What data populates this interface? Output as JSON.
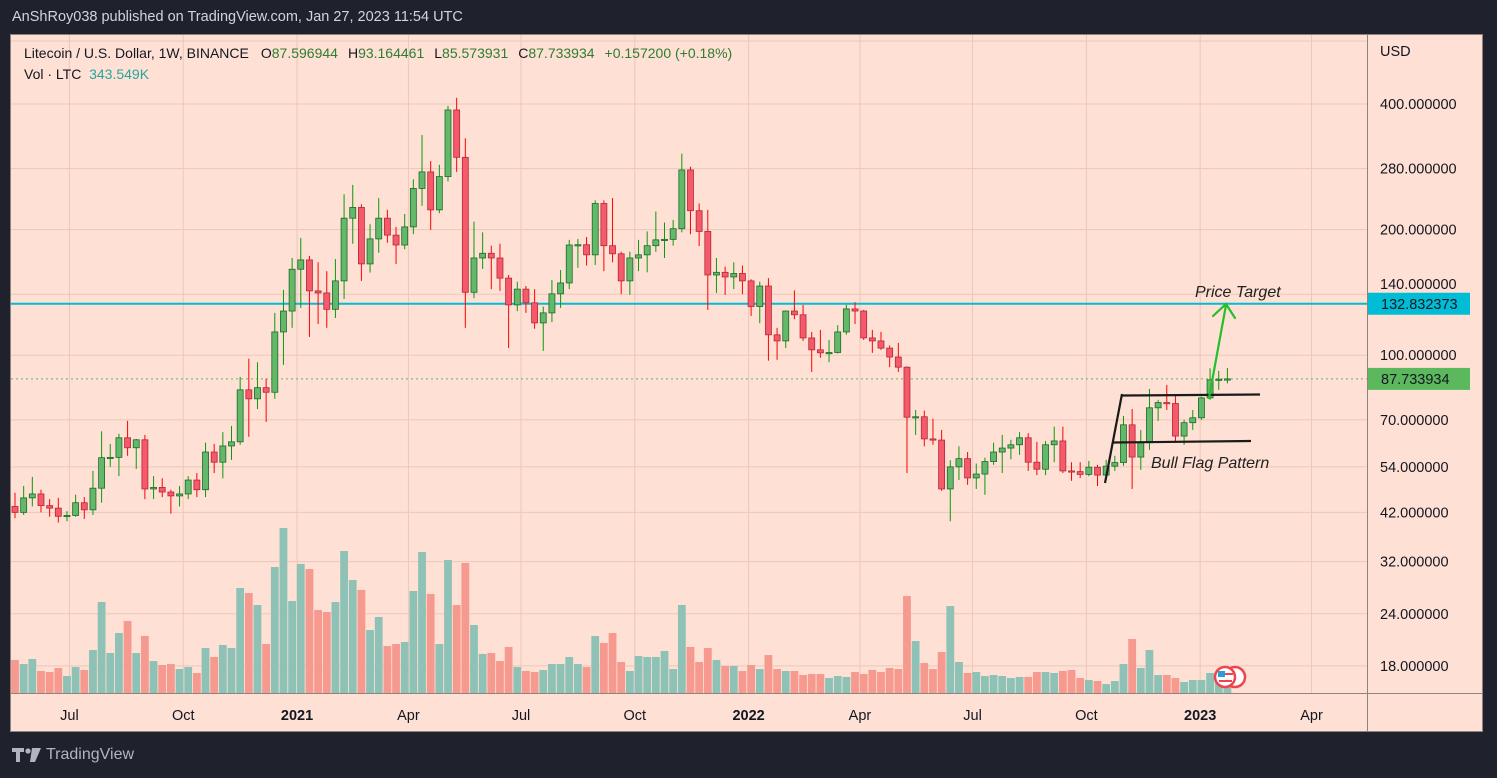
{
  "header": {
    "published": "AnShRoy038 published on TradingView.com, Jan 27, 2023 11:54 UTC"
  },
  "legend": {
    "symbol": "Litecoin / U.S. Dollar, 1W, BINANCE",
    "open_label": "O",
    "open": "87.596944",
    "high_label": "H",
    "high": "93.164461",
    "low_label": "L",
    "low": "85.573931",
    "close_label": "C",
    "close": "87.733934",
    "change": "+0.157200 (+0.18%)",
    "volume_label": "Vol · LTC",
    "volume": "343.549K"
  },
  "branding": {
    "logo_text": "TradingView"
  },
  "colors": {
    "background": "#fee0d4",
    "up": "#63b86a",
    "down": "#f45a6a",
    "vol_up": "#8fc2b6",
    "vol_down": "#f69a90",
    "target_line": "#00bcd4",
    "last_price": "#5cb85c",
    "arrow": "#22c02a"
  },
  "chart_data": {
    "type": "candlestick",
    "title": "",
    "currency_label": "USD",
    "y_scale": "log",
    "grid": true,
    "ylim": [
      16,
      470
    ],
    "y_ticks": [
      "400.000000",
      "280.000000",
      "200.000000",
      "140.000000",
      "100.000000",
      "70.000000",
      "54.000000",
      "42.000000",
      "32.000000",
      "24.000000",
      "18.000000"
    ],
    "x_ticks": [
      {
        "label": "Jul",
        "date": "2020-07-01",
        "year": false
      },
      {
        "label": "Oct",
        "date": "2020-10-01",
        "year": false
      },
      {
        "label": "2021",
        "date": "2021-01-01",
        "year": true
      },
      {
        "label": "Apr",
        "date": "2021-04-01",
        "year": false
      },
      {
        "label": "Jul",
        "date": "2021-07-01",
        "year": false
      },
      {
        "label": "Oct",
        "date": "2021-10-01",
        "year": false
      },
      {
        "label": "2022",
        "date": "2022-01-01",
        "year": true
      },
      {
        "label": "Apr",
        "date": "2022-04-01",
        "year": false
      },
      {
        "label": "Jul",
        "date": "2022-07-01",
        "year": false
      },
      {
        "label": "Oct",
        "date": "2022-10-01",
        "year": false
      },
      {
        "label": "2023",
        "date": "2023-01-01",
        "year": true
      },
      {
        "label": "Apr",
        "date": "2023-04-01",
        "year": false
      }
    ],
    "price_target": {
      "value": 132.832373,
      "label": "132.832373",
      "text": "Price Target"
    },
    "last_price": {
      "value": 87.733934,
      "label": "87.733934"
    },
    "pattern_label": "Bull Flag Pattern",
    "columns": [
      "date",
      "open",
      "high",
      "low",
      "close",
      "volume_k"
    ],
    "candles": [
      [
        "2020-05-18",
        43.4,
        46.8,
        40.7,
        42.0,
        540
      ],
      [
        "2020-05-25",
        42.0,
        48.6,
        41.4,
        45.5,
        474
      ],
      [
        "2020-06-01",
        45.5,
        51.1,
        43.4,
        46.5,
        556
      ],
      [
        "2020-06-08",
        46.5,
        47.6,
        42.0,
        43.6,
        360
      ],
      [
        "2020-06-15",
        43.6,
        45.2,
        41.0,
        43.0,
        343
      ],
      [
        "2020-06-22",
        43.0,
        45.5,
        39.7,
        41.1,
        409
      ],
      [
        "2020-06-29",
        41.1,
        42.3,
        40.0,
        41.3,
        278
      ],
      [
        "2020-07-06",
        41.3,
        46.3,
        41.0,
        44.3,
        425
      ],
      [
        "2020-07-13",
        44.3,
        45.7,
        40.5,
        42.6,
        376
      ],
      [
        "2020-07-20",
        42.6,
        52.8,
        41.4,
        48.0,
        703
      ],
      [
        "2020-07-27",
        48.0,
        65.7,
        44.3,
        56.8,
        1488
      ],
      [
        "2020-08-03",
        56.8,
        61.3,
        54.0,
        56.9,
        654
      ],
      [
        "2020-08-10",
        56.9,
        64.8,
        51.3,
        63.4,
        981
      ],
      [
        "2020-08-17",
        63.4,
        69.6,
        57.4,
        60.0,
        1177
      ],
      [
        "2020-08-24",
        60.0,
        63.0,
        53.4,
        62.7,
        654
      ],
      [
        "2020-08-31",
        62.7,
        64.4,
        45.2,
        47.8,
        932
      ],
      [
        "2020-09-07",
        47.8,
        51.3,
        45.2,
        48.2,
        523
      ],
      [
        "2020-09-14",
        48.2,
        50.7,
        45.7,
        47.0,
        458
      ],
      [
        "2020-09-21",
        47.0,
        47.6,
        41.7,
        46.0,
        474
      ],
      [
        "2020-09-28",
        46.0,
        48.6,
        43.4,
        46.5,
        392
      ],
      [
        "2020-10-05",
        46.5,
        51.3,
        45.2,
        50.2,
        425
      ],
      [
        "2020-10-12",
        50.2,
        52.2,
        45.7,
        47.6,
        327
      ],
      [
        "2020-10-19",
        47.6,
        61.7,
        45.7,
        58.6,
        736
      ],
      [
        "2020-10-26",
        58.6,
        61.3,
        52.2,
        55.4,
        589
      ],
      [
        "2020-11-02",
        55.4,
        65.4,
        50.7,
        60.6,
        785
      ],
      [
        "2020-11-09",
        60.6,
        67.7,
        56.1,
        62.0,
        736
      ],
      [
        "2020-11-16",
        62.0,
        88.7,
        61.0,
        82.6,
        1717
      ],
      [
        "2020-11-23",
        82.6,
        98.1,
        63.7,
        78.6,
        1635
      ],
      [
        "2020-11-30",
        78.6,
        96.2,
        74.3,
        83.6,
        1439
      ],
      [
        "2020-12-07",
        83.6,
        87.8,
        69.2,
        81.5,
        801
      ],
      [
        "2020-12-14",
        81.5,
        126.3,
        78.6,
        113.7,
        2060
      ],
      [
        "2020-12-21",
        113.7,
        143.4,
        94.8,
        127.6,
        2698
      ],
      [
        "2020-12-28",
        127.6,
        171.0,
        116.3,
        160.7,
        1504
      ],
      [
        "2021-01-04",
        160.7,
        191.0,
        129.8,
        169.2,
        2109
      ],
      [
        "2021-01-11",
        169.2,
        173.0,
        110.6,
        142.6,
        2027
      ],
      [
        "2021-01-18",
        142.6,
        167.0,
        118.8,
        141.0,
        1357
      ],
      [
        "2021-01-25",
        141.0,
        159.0,
        116.3,
        128.8,
        1324
      ],
      [
        "2021-02-01",
        128.8,
        170.0,
        122.8,
        150.7,
        1488
      ],
      [
        "2021-02-08",
        150.7,
        243.0,
        136.4,
        213.0,
        2322
      ],
      [
        "2021-02-15",
        213.0,
        256.0,
        185.0,
        226.0,
        1848
      ],
      [
        "2021-02-22",
        226.0,
        230.0,
        150.7,
        165.5,
        1684
      ],
      [
        "2021-03-01",
        165.5,
        206.0,
        157.8,
        190.0,
        1030
      ],
      [
        "2021-03-08",
        190.0,
        238.0,
        176.0,
        213.0,
        1243
      ],
      [
        "2021-03-15",
        213.0,
        223.0,
        186.0,
        194.0,
        768
      ],
      [
        "2021-03-22",
        194.0,
        203.0,
        165.5,
        183.7,
        801
      ],
      [
        "2021-03-29",
        183.7,
        218.0,
        179.5,
        203.0,
        834
      ],
      [
        "2021-04-05",
        203.0,
        264.0,
        195.0,
        251.0,
        1668
      ],
      [
        "2021-04-12",
        251.0,
        337.0,
        228.0,
        275.0,
        2305
      ],
      [
        "2021-04-19",
        275.0,
        292.0,
        199.6,
        223.0,
        1619
      ],
      [
        "2021-04-26",
        223.0,
        286.0,
        219.0,
        268.0,
        801
      ],
      [
        "2021-05-03",
        268.0,
        396.0,
        261.0,
        387.0,
        2175
      ],
      [
        "2021-05-10",
        387.0,
        414.0,
        275.0,
        298.0,
        1439
      ],
      [
        "2021-05-17",
        298.0,
        331.0,
        116.3,
        141.5,
        2126
      ],
      [
        "2021-05-24",
        141.5,
        209.0,
        137.0,
        171.0,
        1112
      ],
      [
        "2021-05-31",
        171.0,
        197.0,
        161.0,
        175.5,
        638
      ],
      [
        "2021-06-07",
        175.5,
        183.0,
        144.0,
        171.0,
        654
      ],
      [
        "2021-06-14",
        171.0,
        185.0,
        142.6,
        153.0,
        523
      ],
      [
        "2021-06-21",
        153.0,
        155.7,
        104.0,
        132.0,
        752
      ],
      [
        "2021-06-28",
        132.0,
        150.0,
        127.5,
        144.0,
        425
      ],
      [
        "2021-07-05",
        144.0,
        146.5,
        126.3,
        133.5,
        360
      ],
      [
        "2021-07-12",
        133.5,
        144.0,
        115.7,
        119.5,
        343
      ],
      [
        "2021-07-19",
        119.5,
        130.8,
        102.4,
        126.3,
        376
      ],
      [
        "2021-07-26",
        126.3,
        151.5,
        120.0,
        140.3,
        474
      ],
      [
        "2021-08-02",
        140.3,
        160.0,
        129.8,
        149.0,
        474
      ],
      [
        "2021-08-09",
        149.0,
        189.0,
        144.0,
        183.7,
        589
      ],
      [
        "2021-08-16",
        183.7,
        190.0,
        162.0,
        184.0,
        474
      ],
      [
        "2021-08-23",
        184.0,
        192.0,
        164.0,
        174.0,
        425
      ],
      [
        "2021-08-30",
        174.0,
        235.0,
        164.6,
        231.0,
        932
      ],
      [
        "2021-09-06",
        231.0,
        235.0,
        159.0,
        183.0,
        818
      ],
      [
        "2021-09-13",
        183.0,
        238.0,
        167.0,
        175.0,
        981
      ],
      [
        "2021-09-20",
        175.0,
        177.0,
        140.0,
        150.7,
        507
      ],
      [
        "2021-09-27",
        150.7,
        177.0,
        139.5,
        171.0,
        360
      ],
      [
        "2021-10-04",
        171.0,
        189.0,
        159.0,
        174.0,
        605
      ],
      [
        "2021-10-11",
        174.0,
        198.0,
        158.0,
        183.0,
        589
      ],
      [
        "2021-10-18",
        183.0,
        221.0,
        177.0,
        189.0,
        589
      ],
      [
        "2021-10-25",
        189.0,
        208.0,
        171.0,
        189.5,
        687
      ],
      [
        "2021-11-01",
        189.5,
        211.0,
        183.0,
        201.0,
        392
      ],
      [
        "2021-11-08",
        201.0,
        304.0,
        197.0,
        278.0,
        1439
      ],
      [
        "2021-11-15",
        278.0,
        283.0,
        195.0,
        222.0,
        752
      ],
      [
        "2021-11-22",
        222.0,
        231.0,
        182.7,
        198.0,
        507
      ],
      [
        "2021-11-29",
        198.0,
        223.0,
        128.4,
        155.7,
        736
      ],
      [
        "2021-12-06",
        155.7,
        171.0,
        141.0,
        158.0,
        540
      ],
      [
        "2021-12-13",
        158.0,
        163.0,
        139.5,
        154.0,
        441
      ],
      [
        "2021-12-20",
        154.0,
        167.0,
        144.0,
        157.0,
        441
      ],
      [
        "2021-12-27",
        157.0,
        164.0,
        140.0,
        150.7,
        360
      ],
      [
        "2022-01-03",
        150.7,
        152.0,
        124.2,
        130.8,
        458
      ],
      [
        "2022-01-10",
        130.8,
        150.0,
        119.3,
        146.5,
        392
      ],
      [
        "2022-01-17",
        146.5,
        153.0,
        97.0,
        111.9,
        621
      ],
      [
        "2022-01-24",
        111.9,
        116.3,
        97.5,
        108.2,
        392
      ],
      [
        "2022-01-31",
        108.2,
        128.0,
        104.0,
        127.6,
        360
      ],
      [
        "2022-02-07",
        127.6,
        143.0,
        122.0,
        125.0,
        360
      ],
      [
        "2022-02-14",
        125.0,
        132.0,
        108.2,
        110.0,
        294
      ],
      [
        "2022-02-21",
        110.0,
        113.7,
        91.2,
        103.0,
        311
      ],
      [
        "2022-02-28",
        103.0,
        115.0,
        98.6,
        101.3,
        311
      ],
      [
        "2022-03-07",
        101.3,
        108.8,
        96.2,
        101.5,
        245
      ],
      [
        "2022-03-14",
        101.5,
        118.0,
        101.0,
        113.7,
        278
      ],
      [
        "2022-03-21",
        113.7,
        132.0,
        112.0,
        129.1,
        262
      ],
      [
        "2022-03-28",
        129.1,
        134.0,
        118.8,
        127.6,
        343
      ],
      [
        "2022-04-04",
        127.6,
        128.4,
        108.8,
        110.0,
        311
      ],
      [
        "2022-04-11",
        110.0,
        115.0,
        101.3,
        108.2,
        376
      ],
      [
        "2022-04-18",
        108.2,
        113.7,
        103.0,
        104.0,
        343
      ],
      [
        "2022-04-25",
        104.0,
        105.5,
        93.6,
        99.0,
        409
      ],
      [
        "2022-05-02",
        99.0,
        107.0,
        91.2,
        93.6,
        392
      ],
      [
        "2022-05-09",
        93.6,
        94.0,
        52.2,
        71.0,
        1586
      ],
      [
        "2022-05-16",
        71.0,
        73.9,
        64.4,
        71.2,
        850
      ],
      [
        "2022-05-23",
        71.2,
        73.6,
        60.5,
        63.0,
        491
      ],
      [
        "2022-05-30",
        63.0,
        70.4,
        61.0,
        62.6,
        392
      ],
      [
        "2022-06-06",
        62.6,
        66.2,
        47.3,
        47.8,
        670
      ],
      [
        "2022-06-13",
        47.8,
        56.0,
        40.0,
        54.0,
        1422
      ],
      [
        "2022-06-20",
        54.0,
        60.5,
        50.2,
        56.5,
        507
      ],
      [
        "2022-06-27",
        56.5,
        58.6,
        48.9,
        50.8,
        327
      ],
      [
        "2022-07-04",
        50.8,
        55.0,
        47.8,
        51.9,
        343
      ],
      [
        "2022-07-11",
        51.9,
        56.8,
        46.3,
        55.6,
        278
      ],
      [
        "2022-07-18",
        55.6,
        61.7,
        54.6,
        58.6,
        294
      ],
      [
        "2022-07-25",
        58.6,
        64.4,
        52.2,
        59.9,
        278
      ],
      [
        "2022-08-01",
        59.9,
        62.7,
        56.3,
        61.0,
        245
      ],
      [
        "2022-08-08",
        61.0,
        65.4,
        57.7,
        63.4,
        262
      ],
      [
        "2022-08-15",
        63.4,
        65.0,
        52.8,
        55.4,
        262
      ],
      [
        "2022-08-22",
        55.4,
        62.0,
        51.6,
        53.3,
        343
      ],
      [
        "2022-08-29",
        53.3,
        62.3,
        51.6,
        61.0,
        343
      ],
      [
        "2022-09-05",
        61.0,
        67.4,
        55.4,
        62.3,
        327
      ],
      [
        "2022-09-12",
        62.3,
        67.4,
        52.2,
        52.8,
        360
      ],
      [
        "2022-09-19",
        52.8,
        55.4,
        50.0,
        52.6,
        376
      ],
      [
        "2022-09-26",
        52.6,
        55.4,
        50.8,
        51.8,
        245
      ],
      [
        "2022-10-03",
        51.8,
        55.8,
        51.3,
        53.9,
        213
      ],
      [
        "2022-10-10",
        53.9,
        54.6,
        48.6,
        51.6,
        196
      ],
      [
        "2022-10-17",
        51.6,
        56.1,
        50.2,
        54.2,
        147
      ],
      [
        "2022-10-24",
        54.2,
        57.4,
        52.8,
        55.3,
        196
      ],
      [
        "2022-10-31",
        55.3,
        71.5,
        54.3,
        68.1,
        474
      ],
      [
        "2022-11-07",
        68.1,
        74.3,
        47.8,
        57.0,
        883
      ],
      [
        "2022-11-14",
        57.0,
        66.2,
        53.1,
        61.7,
        409
      ],
      [
        "2022-11-21",
        61.7,
        83.0,
        59.3,
        74.8,
        703
      ],
      [
        "2022-11-28",
        74.8,
        78.2,
        69.6,
        77.0,
        294
      ],
      [
        "2022-12-05",
        77.0,
        84.9,
        73.9,
        76.6,
        294
      ],
      [
        "2022-12-12",
        76.6,
        80.3,
        61.7,
        64.0,
        245
      ],
      [
        "2022-12-19",
        64.0,
        70.0,
        61.0,
        68.9,
        180
      ],
      [
        "2022-12-26",
        68.9,
        73.9,
        66.2,
        70.8,
        213
      ],
      [
        "2023-01-02",
        70.8,
        79.5,
        70.0,
        79.0,
        213
      ],
      [
        "2023-01-09",
        79.0,
        93.0,
        78.2,
        87.3,
        327
      ],
      [
        "2023-01-16",
        87.3,
        91.7,
        82.6,
        87.6,
        327
      ],
      [
        "2023-01-23",
        87.596944,
        93.164461,
        85.573931,
        87.733934,
        343.549
      ]
    ]
  }
}
